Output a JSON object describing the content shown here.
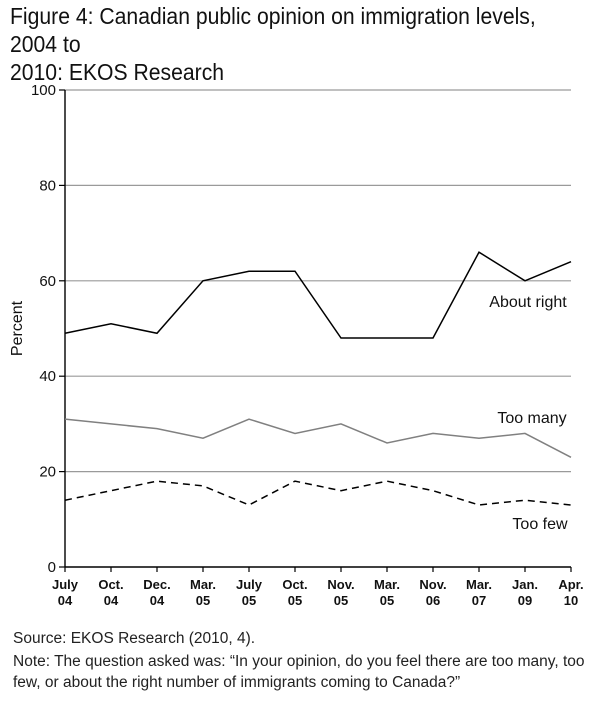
{
  "title": {
    "line1": "Figure 4: Canadian public opinion on immigration levels, 2004 to",
    "line2": "2010: EKOS Research"
  },
  "chart_data": {
    "type": "line",
    "ylabel": "Percent",
    "xlabel": "",
    "ylim": [
      0,
      100
    ],
    "yticks": [
      0,
      20,
      40,
      60,
      80,
      100
    ],
    "categories": [
      [
        "July",
        "04"
      ],
      [
        "Oct.",
        "04"
      ],
      [
        "Dec.",
        "04"
      ],
      [
        "Mar.",
        "05"
      ],
      [
        "July",
        "05"
      ],
      [
        "Oct.",
        "05"
      ],
      [
        "Nov.",
        "05"
      ],
      [
        "Mar.",
        "05"
      ],
      [
        "Nov.",
        "06"
      ],
      [
        "Mar.",
        "07"
      ],
      [
        "Jan.",
        "09"
      ],
      [
        "Apr.",
        "10"
      ]
    ],
    "series": [
      {
        "name": "About right",
        "style": "solid",
        "color": "#000000",
        "values": [
          49,
          51,
          49,
          60,
          62,
          62,
          48,
          48,
          48,
          66,
          60,
          64
        ]
      },
      {
        "name": "Too many",
        "style": "solid",
        "color": "#808080",
        "values": [
          31,
          30,
          29,
          27,
          31,
          28,
          30,
          26,
          28,
          27,
          28,
          23
        ]
      },
      {
        "name": "Too few",
        "style": "dashed",
        "color": "#000000",
        "values": [
          14,
          16,
          18,
          17,
          13,
          18,
          16,
          18,
          16,
          13,
          14,
          13
        ]
      }
    ]
  },
  "source": "Source: EKOS Research (2010, 4).",
  "note": "Note: The question asked was: “In your opinion, do you feel there are too many, too few, or about the right number of immigrants coming to Canada?”"
}
